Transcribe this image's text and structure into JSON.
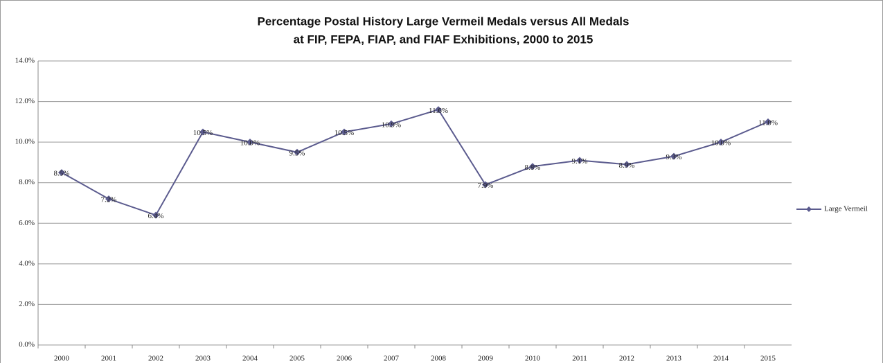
{
  "chart_data": {
    "type": "line",
    "title": [
      "Percentage Postal History Large Vermeil Medals versus All Medals",
      "at FIP, FEPA, FIAP, and FIAF Exhibitions, 2000 to 2015"
    ],
    "categories": [
      "2000",
      "2001",
      "2002",
      "2003",
      "2004",
      "2005",
      "2006",
      "2007",
      "2008",
      "2009",
      "2010",
      "2011",
      "2012",
      "2013",
      "2014",
      "2015"
    ],
    "series": [
      {
        "name": "Large Vermeil",
        "color": "#5b5b8e",
        "values": [
          8.5,
          7.2,
          6.4,
          10.5,
          10.0,
          9.5,
          10.5,
          10.9,
          11.6,
          7.9,
          8.8,
          9.1,
          8.9,
          9.3,
          10.0,
          11.0
        ],
        "value_labels": [
          "8.5%",
          "7.2%",
          "6.4%",
          "10.5%",
          "10.0%",
          "9.5%",
          "10.5%",
          "10.9%",
          "11.6%",
          "7.9%",
          "8.8%",
          "9.1%",
          "8.9%",
          "9.3%",
          "10.0%",
          "11.0%"
        ]
      }
    ],
    "ylim": [
      0,
      14
    ],
    "yticks": [
      {
        "value": 0,
        "label": "0.0%"
      },
      {
        "value": 2,
        "label": "2.0%"
      },
      {
        "value": 4,
        "label": "4.0%"
      },
      {
        "value": 6,
        "label": "6.0%"
      },
      {
        "value": 8,
        "label": "8.0%"
      },
      {
        "value": 10,
        "label": "10.0%"
      },
      {
        "value": 12,
        "label": "12.0%"
      },
      {
        "value": 14,
        "label": "14.0%"
      }
    ],
    "grid": true,
    "legend": "right"
  }
}
